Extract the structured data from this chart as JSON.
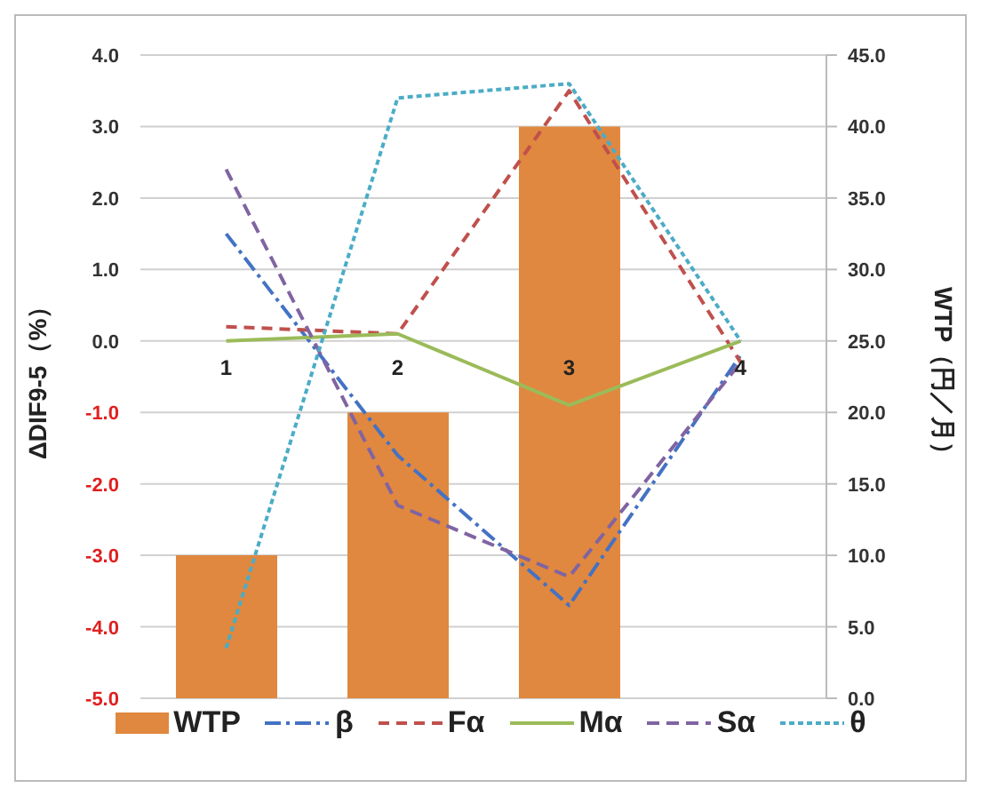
{
  "chart_data": {
    "type": "bar",
    "categories": [
      "1",
      "2",
      "3",
      "4"
    ],
    "ylabel": "ΔDIF9-5（%）",
    "y2label": "WTP（円／月）",
    "series": [
      {
        "name": "WTP",
        "axis": "y2",
        "color": "#e0883f",
        "values": [
          10,
          20,
          40,
          null
        ]
      },
      {
        "name": "β",
        "type": "line",
        "color": "#4472c4",
        "line_style": "dashed",
        "values": [
          1.5,
          -1.6,
          -3.7,
          -0.2
        ]
      },
      {
        "name": "Fα",
        "type": "line",
        "color": "#c0504d",
        "line_style": "dashed",
        "values": [
          0.2,
          0.1,
          3.5,
          -0.3
        ]
      },
      {
        "name": "Mα",
        "type": "line",
        "color": "#9bbb59",
        "line_style": "solid",
        "values": [
          0,
          0.1,
          -0.9,
          0
        ]
      },
      {
        "name": "Sα",
        "type": "line",
        "color": "#8064a2",
        "line_style": "dashed",
        "values": [
          2.4,
          -2.3,
          -3.3,
          -0.3
        ]
      },
      {
        "name": "θ",
        "type": "line",
        "color": "#4bacc6",
        "line_style": "dashed",
        "values": [
          -4.3,
          3.4,
          3.6,
          0
        ]
      }
    ],
    "ylim": [
      -5,
      4
    ],
    "yticks": [
      {
        "value": -5,
        "label": "-5.0"
      },
      {
        "value": -4,
        "label": "-4.0"
      },
      {
        "value": -3,
        "label": "-3.0"
      },
      {
        "value": -2,
        "label": "-2.0"
      },
      {
        "value": -1,
        "label": "-1.0"
      },
      {
        "value": 0,
        "label": "0.0"
      },
      {
        "value": 1,
        "label": "1.0"
      },
      {
        "value": 2,
        "label": "2.0"
      },
      {
        "value": 3,
        "label": "3.0"
      },
      {
        "value": 4,
        "label": "4.0"
      }
    ],
    "y2lim": [
      0,
      45
    ],
    "y2ticks": [
      {
        "value": 0,
        "label": "0.0"
      },
      {
        "value": 5,
        "label": "5.0"
      },
      {
        "value": 10,
        "label": "10.0"
      },
      {
        "value": 15,
        "label": "15.0"
      },
      {
        "value": 20,
        "label": "20.0"
      },
      {
        "value": 25,
        "label": "25.0"
      },
      {
        "value": 30,
        "label": "30.0"
      },
      {
        "value": 35,
        "label": "35.0"
      },
      {
        "value": 40,
        "label": "40.0"
      },
      {
        "value": 45,
        "label": "45.0"
      }
    ],
    "grid": "y",
    "legend": "bottom",
    "marker": "none"
  }
}
